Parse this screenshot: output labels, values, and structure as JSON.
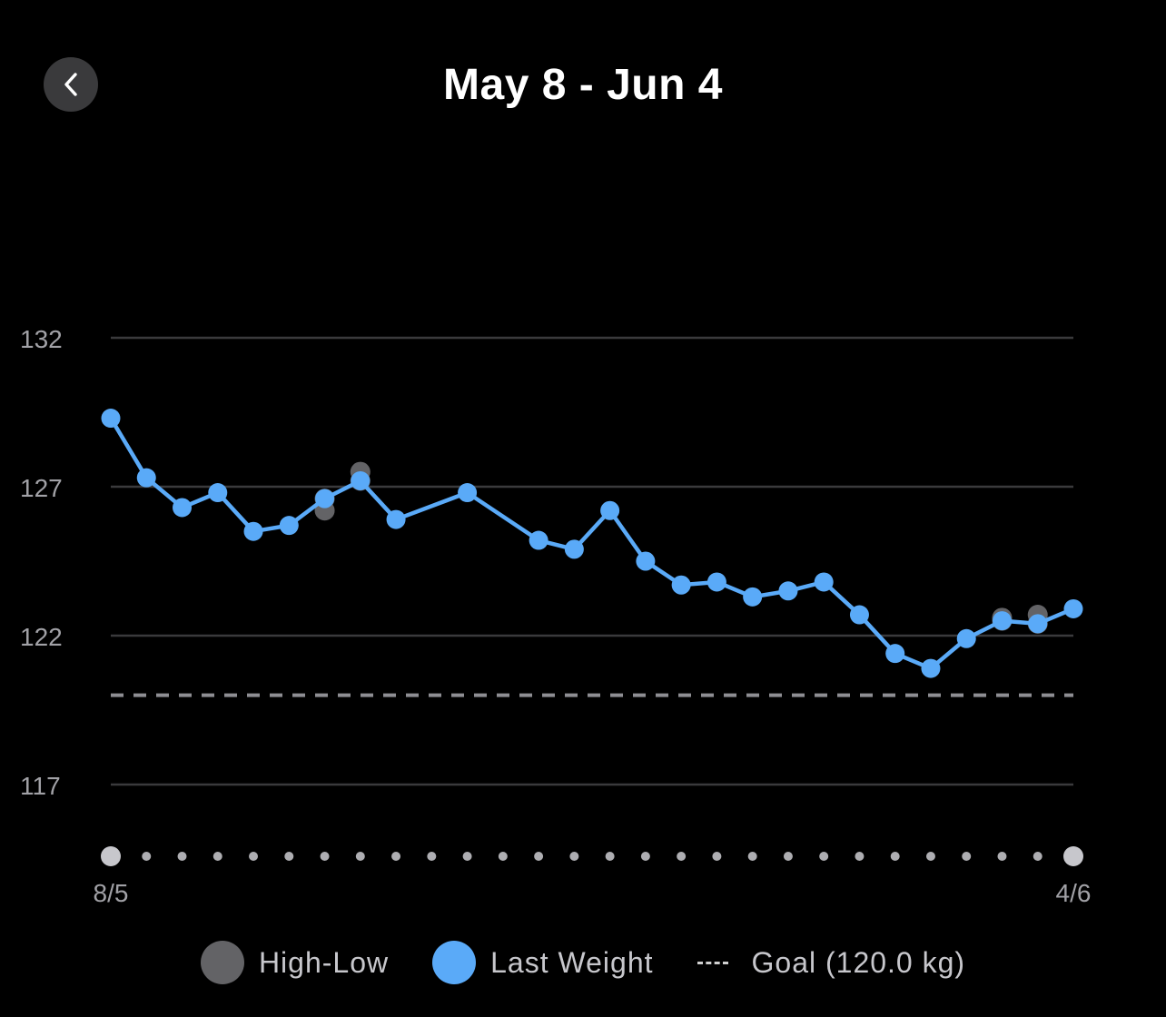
{
  "header": {
    "title": "May 8 - Jun 4",
    "back_icon": "chevron-left-icon"
  },
  "colors": {
    "background": "#000000",
    "last_weight": "#5aaaf8",
    "high_low": "#636366",
    "goal_line": "#8e8e93",
    "grid": "#3a3a3c",
    "axis_text": "#a1a1a6"
  },
  "legend": {
    "high_low_label": "High-Low",
    "last_weight_label": "Last Weight",
    "goal_label": "Goal (120.0 kg)"
  },
  "chart_data": {
    "type": "line",
    "title": "",
    "xlabel": "",
    "ylabel": "",
    "ylim": [
      114.8,
      138.0
    ],
    "y_ticks": [
      117,
      122,
      127,
      132
    ],
    "x_axis": {
      "start_label": "8/5",
      "end_label": "4/6",
      "day_count": 28
    },
    "goal": 120.0,
    "grid": true,
    "legend_position": "bottom",
    "series": [
      {
        "name": "Last Weight",
        "points": [
          {
            "day": 0,
            "value": 129.3
          },
          {
            "day": 1,
            "value": 127.3
          },
          {
            "day": 2,
            "value": 126.3
          },
          {
            "day": 3,
            "value": 126.8
          },
          {
            "day": 4,
            "value": 125.5
          },
          {
            "day": 5,
            "value": 125.7
          },
          {
            "day": 6,
            "value": 126.6
          },
          {
            "day": 7,
            "value": 127.2
          },
          {
            "day": 8,
            "value": 125.9
          },
          {
            "day": 10,
            "value": 126.8
          },
          {
            "day": 12,
            "value": 125.2
          },
          {
            "day": 13,
            "value": 124.9
          },
          {
            "day": 14,
            "value": 126.2
          },
          {
            "day": 15,
            "value": 124.5
          },
          {
            "day": 16,
            "value": 123.7
          },
          {
            "day": 17,
            "value": 123.8
          },
          {
            "day": 18,
            "value": 123.3
          },
          {
            "day": 19,
            "value": 123.5
          },
          {
            "day": 20,
            "value": 123.8
          },
          {
            "day": 21,
            "value": 122.7
          },
          {
            "day": 22,
            "value": 121.4
          },
          {
            "day": 23,
            "value": 120.9
          },
          {
            "day": 24,
            "value": 121.9
          },
          {
            "day": 25,
            "value": 122.5
          },
          {
            "day": 26,
            "value": 122.4
          },
          {
            "day": 27,
            "value": 122.9
          }
        ]
      },
      {
        "name": "High-Low",
        "ranges": [
          {
            "day": 6,
            "high": 126.6,
            "low": 126.2
          },
          {
            "day": 7,
            "high": 127.5,
            "low": 127.2
          },
          {
            "day": 25,
            "high": 122.6,
            "low": 122.5
          },
          {
            "day": 26,
            "high": 122.7,
            "low": 122.4
          }
        ]
      }
    ]
  }
}
